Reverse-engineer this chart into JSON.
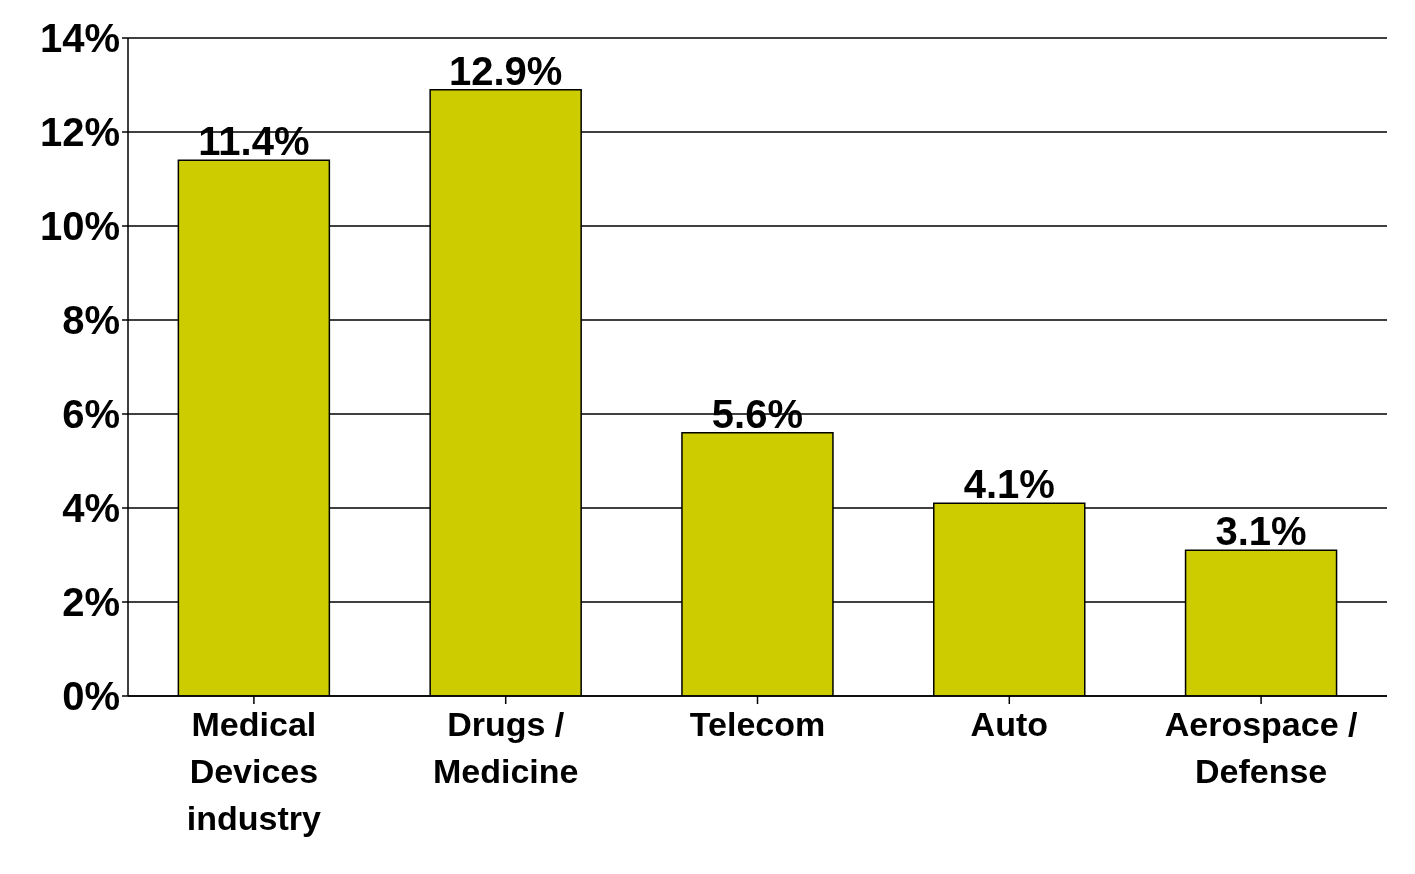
{
  "chart_data": {
    "type": "bar",
    "categories": [
      "Medical Devices industry",
      "Drugs / Medicine",
      "Telecom",
      "Auto",
      "Aerospace / Defense"
    ],
    "values": [
      11.4,
      12.9,
      5.6,
      4.1,
      3.1
    ],
    "value_labels": [
      "11.4%",
      "12.9%",
      "5.6%",
      "4.1%",
      "3.1%"
    ],
    "color": "#cccc00",
    "ylim": [
      0,
      14
    ],
    "yticks": [
      {
        "value": 0,
        "label": "0%"
      },
      {
        "value": 2,
        "label": "2%"
      },
      {
        "value": 4,
        "label": "4%"
      },
      {
        "value": 6,
        "label": "6%"
      },
      {
        "value": 8,
        "label": "8%"
      },
      {
        "value": 10,
        "label": "10%"
      },
      {
        "value": 12,
        "label": "12%"
      },
      {
        "value": 14,
        "label": "14%"
      }
    ],
    "grid": "y"
  }
}
